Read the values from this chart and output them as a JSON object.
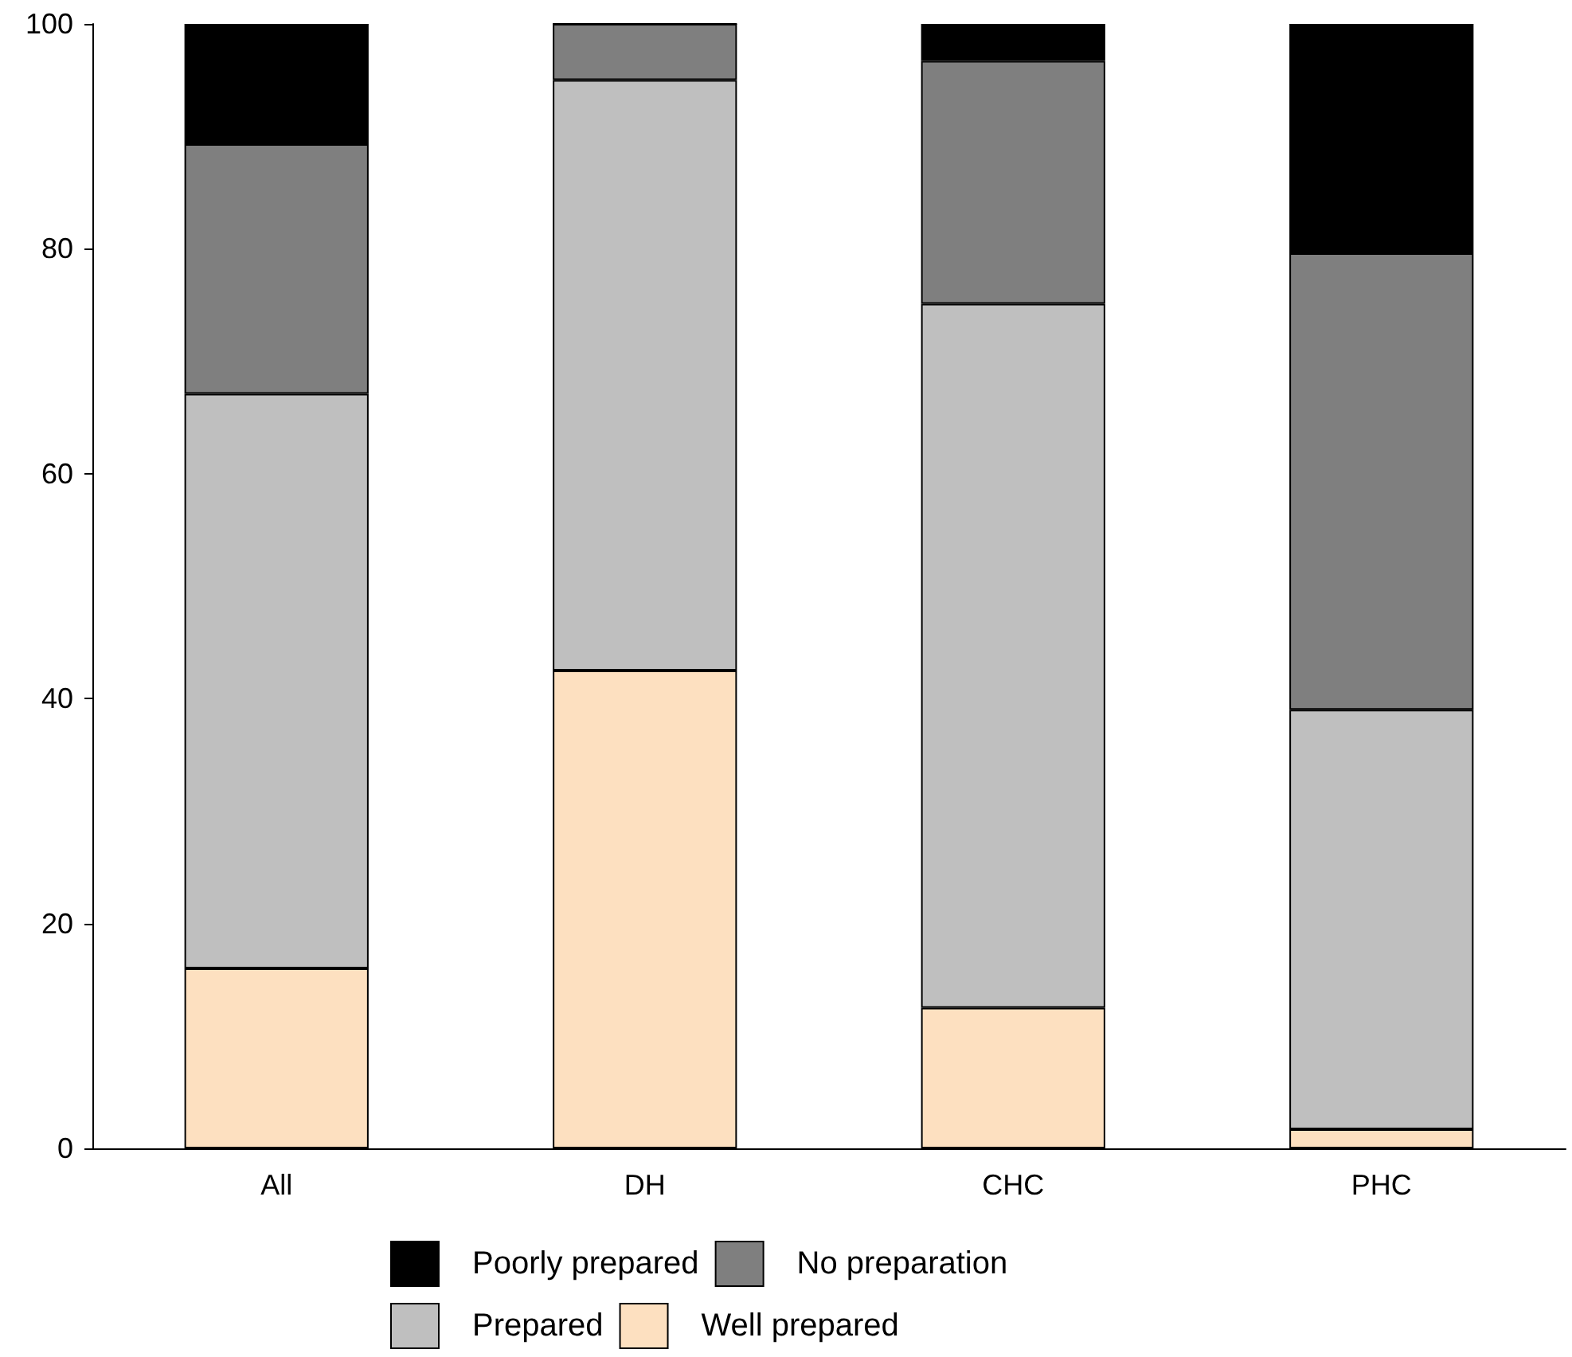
{
  "chart_data": {
    "type": "bar",
    "stacked": true,
    "categories": [
      "All",
      "DH",
      "CHC",
      "PHC"
    ],
    "series": [
      {
        "name": "Well prepared",
        "color": "#fde0c0",
        "values": [
          16,
          42.5,
          12.5,
          1.7
        ]
      },
      {
        "name": "Prepared",
        "color": "#bfbfbf",
        "values": [
          51.1,
          52.5,
          62.6,
          37.3
        ]
      },
      {
        "name": "No preparation",
        "color": "#7f7f7f",
        "values": [
          22.2,
          5,
          21.6,
          40.6
        ]
      },
      {
        "name": "Poorly prepared",
        "color": "#000000",
        "values": [
          10.7,
          0,
          3.3,
          20.4
        ]
      }
    ],
    "ylim": [
      0,
      100
    ],
    "yticks": [
      0,
      20,
      40,
      60,
      80,
      100
    ],
    "grid": false,
    "legend": "bottom"
  }
}
